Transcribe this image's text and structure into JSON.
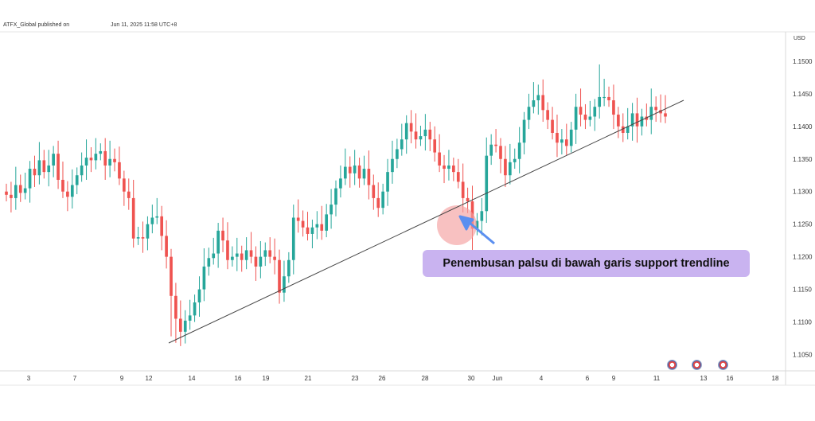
{
  "header": {
    "publisher": "ATFX_Global published on",
    "date": "Jun 11, 2025 11:58 UTC+8"
  },
  "annotation": {
    "text": "Penembusan palsu di bawah garis support trendline"
  },
  "event_icons": [
    "us-flag-icon",
    "us-flag-icon",
    "us-flag-icon"
  ],
  "colors": {
    "up": "#26a69a",
    "down": "#ef5350",
    "trendline": "#444444",
    "annotation_bg": "#c9b3f0",
    "highlight": "#f4a0a0",
    "arrow": "#5b8ff0"
  },
  "chart_data": {
    "type": "candlestick",
    "currency": "USD",
    "ylim": [
      1.1025,
      1.1545
    ],
    "yticks": [
      "1.1500",
      "1.1450",
      "1.1400",
      "1.1350",
      "1.1300",
      "1.1250",
      "1.1200",
      "1.1150",
      "1.1100",
      "1.1050"
    ],
    "xticks": [
      "3",
      "7",
      "9",
      "12",
      "14",
      "16",
      "19",
      "21",
      "23",
      "26",
      "28",
      "30",
      "Jun",
      "4",
      "6",
      "9",
      "11",
      "13",
      "16",
      "18"
    ],
    "ohlc_close_series": [
      1.1295,
      1.129,
      1.131,
      1.1298,
      1.1305,
      1.1335,
      1.1325,
      1.1348,
      1.133,
      1.134,
      1.1358,
      1.1318,
      1.13,
      1.1292,
      1.131,
      1.1325,
      1.134,
      1.1352,
      1.1348,
      1.1358,
      1.1362,
      1.134,
      1.135,
      1.1345,
      1.132,
      1.13,
      1.129,
      1.1228,
      1.123,
      1.1228,
      1.125,
      1.126,
      1.1262,
      1.1232,
      1.12,
      1.114,
      1.1105,
      1.1085,
      1.1102,
      1.111,
      1.113,
      1.115,
      1.1185,
      1.1198,
      1.1205,
      1.124,
      1.1225,
      1.1195,
      1.12,
      1.1205,
      1.1195,
      1.121,
      1.12,
      1.1185,
      1.12,
      1.121,
      1.12,
      1.1195,
      1.1145,
      1.117,
      1.1195,
      1.126,
      1.1255,
      1.1245,
      1.1235,
      1.1245,
      1.125,
      1.124,
      1.1265,
      1.128,
      1.1305,
      1.132,
      1.1338,
      1.1328,
      1.134,
      1.132,
      1.1335,
      1.131,
      1.129,
      1.1275,
      1.13,
      1.133,
      1.135,
      1.1365,
      1.138,
      1.1405,
      1.1392,
      1.138,
      1.1385,
      1.1395,
      1.138,
      1.136,
      1.134,
      1.1335,
      1.134,
      1.133,
      1.1315,
      1.129,
      1.1285,
      1.1243,
      1.1255,
      1.127,
      1.1355,
      1.1372,
      1.137,
      1.135,
      1.1325,
      1.1345,
      1.135,
      1.1375,
      1.141,
      1.143,
      1.144,
      1.1448,
      1.1425,
      1.141,
      1.139,
      1.1375,
      1.138,
      1.137,
      1.1395,
      1.143,
      1.1418,
      1.141,
      1.1415,
      1.143,
      1.1445,
      1.1445,
      1.144,
      1.1418,
      1.14,
      1.139,
      1.14,
      1.142,
      1.14,
      1.1415,
      1.141,
      1.143,
      1.1425,
      1.142,
      1.1415
    ],
    "trendline": {
      "from": {
        "x": "12",
        "y": 1.1065
      },
      "to": {
        "x": "12",
        "y": 1.144
      }
    },
    "annotation_text": "Penembusan palsu di bawah garis support trendline"
  }
}
